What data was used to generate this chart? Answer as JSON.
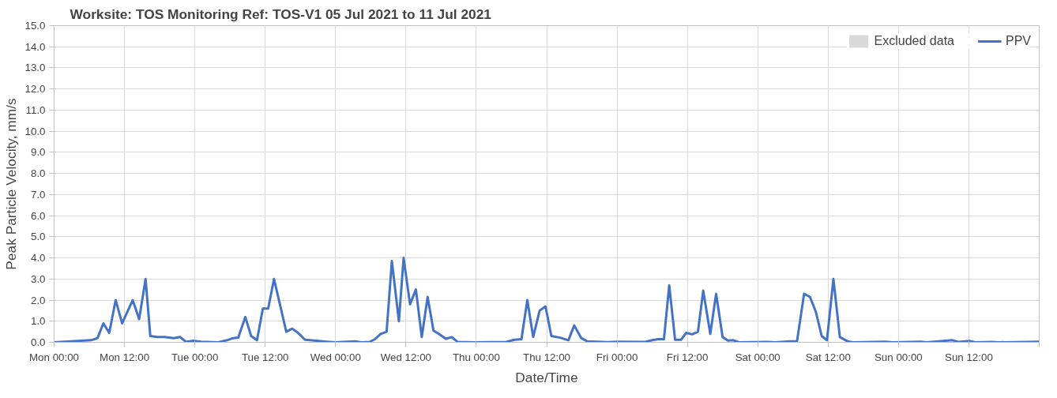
{
  "chart_data": {
    "type": "line",
    "title": "Worksite: TOS    Monitoring Ref: TOS-V1     05 Jul 2021 to 11 Jul 2021",
    "xlabel": "Date/Time",
    "ylabel": "Peak Particle Velocity, mm/s",
    "xlim": [
      "2021-07-05T00:00",
      "2021-07-12T00:00"
    ],
    "xticks": [
      {
        "value": "2021-07-05T00:00",
        "label": "Mon 00:00"
      },
      {
        "value": "2021-07-05T12:00",
        "label": "Mon 12:00"
      },
      {
        "value": "2021-07-06T00:00",
        "label": "Tue 00:00"
      },
      {
        "value": "2021-07-06T12:00",
        "label": "Tue 12:00"
      },
      {
        "value": "2021-07-07T00:00",
        "label": "Wed 00:00"
      },
      {
        "value": "2021-07-07T12:00",
        "label": "Wed 12:00"
      },
      {
        "value": "2021-07-08T00:00",
        "label": "Thu 00:00"
      },
      {
        "value": "2021-07-08T12:00",
        "label": "Thu 12:00"
      },
      {
        "value": "2021-07-09T00:00",
        "label": "Fri 00:00"
      },
      {
        "value": "2021-07-09T12:00",
        "label": "Fri 12:00"
      },
      {
        "value": "2021-07-10T00:00",
        "label": "Sat 00:00"
      },
      {
        "value": "2021-07-10T12:00",
        "label": "Sat 12:00"
      },
      {
        "value": "2021-07-11T00:00",
        "label": "Sun 00:00"
      },
      {
        "value": "2021-07-11T12:00",
        "label": "Sun 12:00"
      },
      {
        "value": "2021-07-12T00:00",
        "label": null
      }
    ],
    "ylim": [
      0,
      15
    ],
    "yticks": [
      {
        "value": 0,
        "label": "0.0"
      },
      {
        "value": 1,
        "label": "1.0"
      },
      {
        "value": 2,
        "label": "2.0"
      },
      {
        "value": 3,
        "label": "3.0"
      },
      {
        "value": 4,
        "label": "4.0"
      },
      {
        "value": 5,
        "label": "5.0"
      },
      {
        "value": 6,
        "label": "6.0"
      },
      {
        "value": 7,
        "label": "7.0"
      },
      {
        "value": 8,
        "label": "8.0"
      },
      {
        "value": 9,
        "label": "9.0"
      },
      {
        "value": 10,
        "label": "10.0"
      },
      {
        "value": 11,
        "label": "11.0"
      },
      {
        "value": 12,
        "label": "12.0"
      },
      {
        "value": 13,
        "label": "13.0"
      },
      {
        "value": 14,
        "label": "14.0"
      },
      {
        "value": 15,
        "label": "15.0"
      }
    ],
    "grid": true,
    "legend": "top right",
    "marker": "none",
    "line_style": "solid",
    "series": [
      {
        "name": "Excluded data",
        "type": "area",
        "color": "#d9d9d9"
      },
      {
        "name": "PPV",
        "color": "#4472c4",
        "x": [
          "2021-07-05T00:00",
          "2021-07-05T06:18",
          "2021-07-05T07:24",
          "2021-07-05T08:24",
          "2021-07-05T09:24",
          "2021-07-05T10:30",
          "2021-07-05T11:36",
          "2021-07-05T13:24",
          "2021-07-05T14:30",
          "2021-07-05T15:36",
          "2021-07-05T16:24",
          "2021-07-05T17:36",
          "2021-07-05T18:54",
          "2021-07-05T20:24",
          "2021-07-05T21:30",
          "2021-07-05T22:30",
          "2021-07-05T23:42",
          "2021-07-06T01:00",
          "2021-07-06T04:00",
          "2021-07-06T05:30",
          "2021-07-06T06:30",
          "2021-07-06T07:24",
          "2021-07-06T08:36",
          "2021-07-06T09:36",
          "2021-07-06T10:36",
          "2021-07-06T11:36",
          "2021-07-06T12:30",
          "2021-07-06T13:30",
          "2021-07-06T15:36",
          "2021-07-06T16:36",
          "2021-07-06T17:36",
          "2021-07-06T18:48",
          "2021-07-06T20:24",
          "2021-07-06T22:30",
          "2021-07-07T00:00",
          "2021-07-07T03:18",
          "2021-07-07T04:24",
          "2021-07-07T05:48",
          "2021-07-07T06:42",
          "2021-07-07T07:42",
          "2021-07-07T08:42",
          "2021-07-07T09:36",
          "2021-07-07T10:48",
          "2021-07-07T11:36",
          "2021-07-07T12:42",
          "2021-07-07T13:42",
          "2021-07-07T14:42",
          "2021-07-07T15:42",
          "2021-07-07T16:42",
          "2021-07-07T17:36",
          "2021-07-07T18:48",
          "2021-07-07T19:48",
          "2021-07-07T20:48",
          "2021-07-07T23:42",
          "2021-07-08T05:06",
          "2021-07-08T06:30",
          "2021-07-08T07:42",
          "2021-07-08T08:42",
          "2021-07-08T09:42",
          "2021-07-08T10:48",
          "2021-07-08T11:48",
          "2021-07-08T12:48",
          "2021-07-08T14:18",
          "2021-07-08T15:42",
          "2021-07-08T16:42",
          "2021-07-08T17:54",
          "2021-07-08T18:54",
          "2021-07-08T20:30",
          "2021-07-08T22:30",
          "2021-07-09T00:00",
          "2021-07-09T04:48",
          "2021-07-09T06:00",
          "2021-07-09T07:00",
          "2021-07-09T08:00",
          "2021-07-09T08:54",
          "2021-07-09T09:54",
          "2021-07-09T10:54",
          "2021-07-09T11:48",
          "2021-07-09T12:48",
          "2021-07-09T13:48",
          "2021-07-09T14:42",
          "2021-07-09T15:54",
          "2021-07-09T16:54",
          "2021-07-09T18:00",
          "2021-07-09T18:54",
          "2021-07-09T19:48",
          "2021-07-09T20:48",
          "2021-07-10T01:36",
          "2021-07-10T03:00",
          "2021-07-10T05:30",
          "2021-07-10T06:42",
          "2021-07-10T07:54",
          "2021-07-10T08:54",
          "2021-07-10T09:54",
          "2021-07-10T10:54",
          "2021-07-10T11:48",
          "2021-07-10T12:54",
          "2021-07-10T14:00",
          "2021-07-10T15:18",
          "2021-07-10T16:12",
          "2021-07-10T21:48",
          "2021-07-10T23:00",
          "2021-07-11T03:48",
          "2021-07-11T04:48",
          "2021-07-11T09:12",
          "2021-07-11T10:12",
          "2021-07-11T12:06",
          "2021-07-11T13:06",
          "2021-07-11T16:00",
          "2021-07-11T16:54",
          "2021-07-12T00:00"
        ],
        "values": [
          0,
          0.1,
          0.2,
          0.9,
          0.45,
          2.0,
          0.9,
          2.0,
          1.1,
          3.0,
          0.3,
          0.25,
          0.25,
          0.2,
          0.25,
          0.02,
          0.08,
          0.03,
          0,
          0.1,
          0.2,
          0.22,
          1.2,
          0.3,
          0.1,
          1.6,
          1.6,
          3.0,
          0.5,
          0.65,
          0.45,
          0.12,
          0.08,
          0.03,
          0,
          0.05,
          0,
          0.02,
          0.15,
          0.4,
          0.5,
          3.85,
          1.0,
          4.0,
          1.8,
          2.5,
          0.25,
          2.15,
          0.55,
          0.4,
          0.17,
          0.25,
          0.02,
          0,
          0.02,
          0.12,
          0.15,
          2.0,
          0.25,
          1.5,
          1.7,
          0.3,
          0.22,
          0.1,
          0.8,
          0.2,
          0.05,
          0.03,
          0.01,
          0.03,
          0.02,
          0.1,
          0.15,
          0.15,
          2.7,
          0.12,
          0.12,
          0.45,
          0.38,
          0.5,
          2.45,
          0.4,
          2.3,
          0.25,
          0.08,
          0.1,
          0,
          0.02,
          0,
          0.05,
          0.06,
          2.3,
          2.15,
          1.45,
          0.3,
          0.1,
          3.0,
          0.25,
          0.05,
          0,
          0.03,
          0,
          0.03,
          0,
          0.1,
          0.02,
          0.07,
          0,
          0.02,
          0,
          0.03
        ]
      }
    ]
  }
}
